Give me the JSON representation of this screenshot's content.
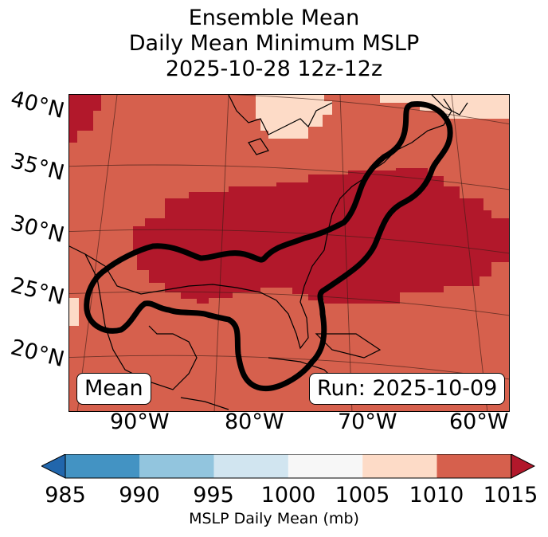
{
  "title": {
    "line1": "Ensemble Mean",
    "line2": "Daily Mean Minimum MSLP",
    "line3": "2025-10-28 12z-12z"
  },
  "map": {
    "lat_labels": [
      "40°N",
      "35°N",
      "30°N",
      "25°N",
      "20°N"
    ],
    "lon_labels": [
      "90°W",
      "80°W",
      "70°W",
      "60°W"
    ],
    "legend_box": "Mean",
    "run_box": "Run: 2025-10-09"
  },
  "colorbar": {
    "ticks": [
      "985",
      "990",
      "995",
      "1000",
      "1005",
      "1010",
      "1015"
    ],
    "label": "MSLP Daily Mean (mb)",
    "bin_colors": [
      "#4393c3",
      "#92c5de",
      "#d1e5f0",
      "#f7f7f7",
      "#fddbc7",
      "#d6604d"
    ],
    "under_color": "#2166ac",
    "over_color": "#b2182b"
  },
  "field_colors": {
    "c1005": "#fddbc7",
    "c1010": "#d6604d",
    "c1015": "#b2182b",
    "contour": "#000000"
  }
}
